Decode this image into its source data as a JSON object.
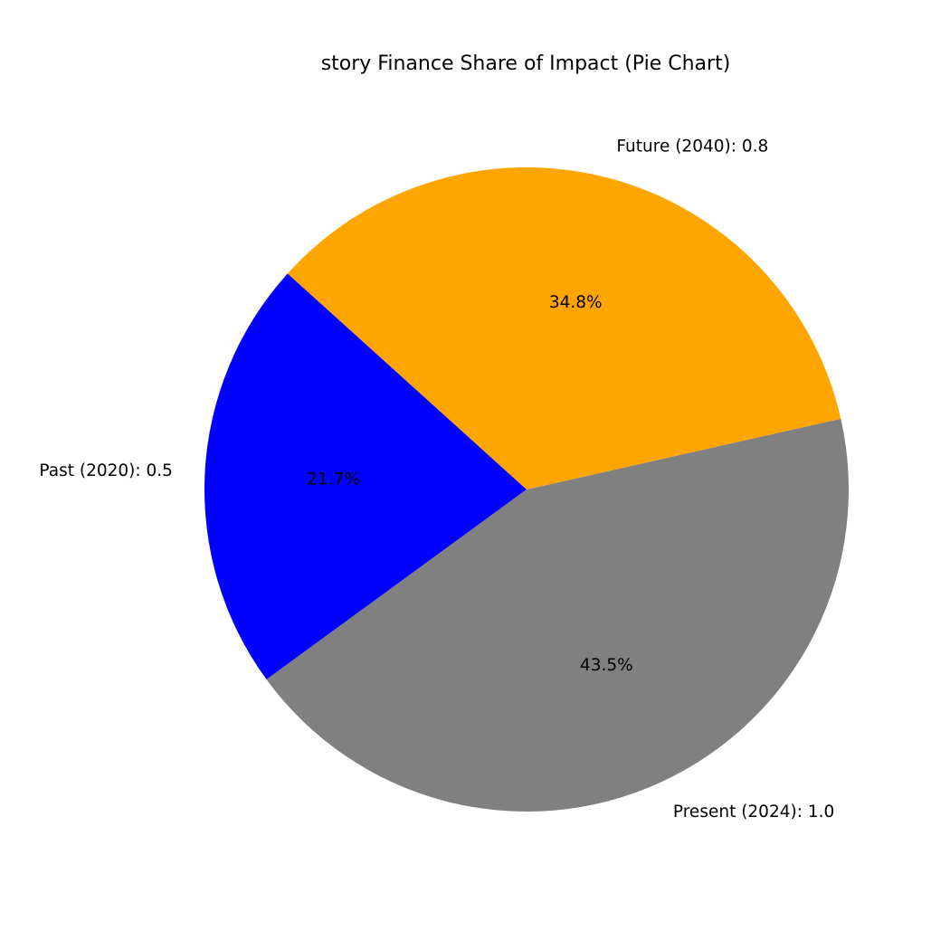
{
  "chart_data": {
    "type": "pie",
    "title": "story Finance Share of Impact (Pie Chart)",
    "slices": [
      {
        "label": "Past (2020): 0.5",
        "value": 0.5,
        "percent": "21.7%",
        "color": "#0000ff"
      },
      {
        "label": "Present (2024): 1.0",
        "value": 1.0,
        "percent": "43.5%",
        "color": "#808080"
      },
      {
        "label": "Future (2040): 0.8",
        "value": 0.8,
        "percent": "34.8%",
        "color": "#ffa500"
      }
    ]
  }
}
